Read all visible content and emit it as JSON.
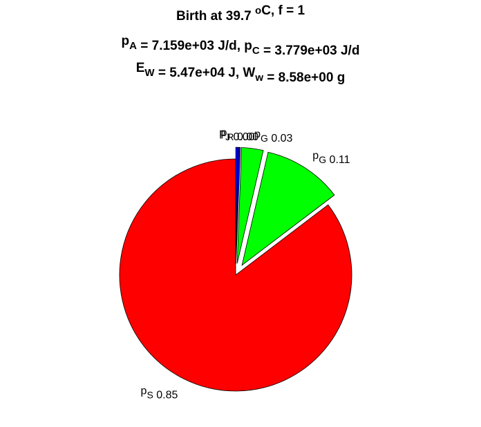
{
  "chart_data": {
    "type": "pie",
    "title": [
      [
        {
          "text": "Birth at 39.7 "
        },
        {
          "sup": "o"
        },
        {
          "text": "C, f = 1"
        }
      ],
      [
        {
          "text": "p"
        },
        {
          "sub": "A"
        },
        {
          "text": " = 7.159e+03 J/d, p"
        },
        {
          "sub": "C"
        },
        {
          "text": " = 3.779e+03 J/d"
        }
      ],
      [
        {
          "text": "E"
        },
        {
          "sub": "W"
        },
        {
          "text": " = 5.47e+04 J, W"
        },
        {
          "sub": "w"
        },
        {
          "text": " = 8.58e+00 g"
        }
      ]
    ],
    "labels": [
      {
        "base": "p",
        "sub": "S"
      },
      {
        "base": "p",
        "sub": "G"
      },
      {
        "base": "p",
        "sub": "G"
      },
      {
        "base": "p",
        "sub": "R"
      },
      {
        "base": "p",
        "sub": "J"
      }
    ],
    "values": [
      0.85,
      0.11,
      0.03,
      0.003,
      0.003
    ],
    "value_labels": [
      "0.85",
      "0.11",
      "0.03",
      "0.00",
      "0.00"
    ],
    "colors": [
      "#ff0000",
      "#00ff00",
      "#00ff00",
      "#0000ff",
      "#0000ff"
    ],
    "explode": [
      0,
      1,
      1,
      1,
      1
    ]
  }
}
